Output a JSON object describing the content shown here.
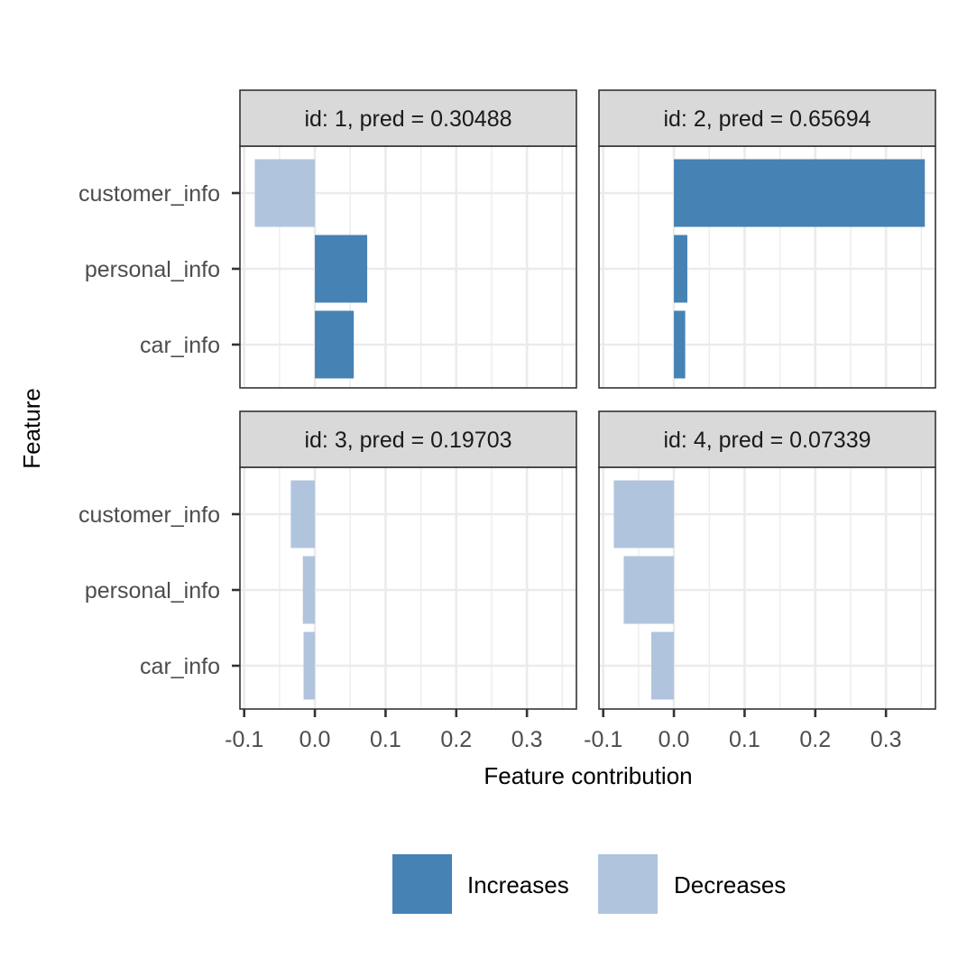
{
  "chart_data": {
    "type": "bar",
    "orientation": "horizontal",
    "facets": [
      {
        "title": "id: 1, pred = 0.30488",
        "bars": [
          {
            "feature": "customer_info",
            "value": -0.085,
            "direction": "Decreases"
          },
          {
            "feature": "personal_info",
            "value": 0.074,
            "direction": "Increases"
          },
          {
            "feature": "car_info",
            "value": 0.055,
            "direction": "Increases"
          }
        ]
      },
      {
        "title": "id: 2, pred = 0.65694",
        "bars": [
          {
            "feature": "customer_info",
            "value": 0.355,
            "direction": "Increases"
          },
          {
            "feature": "personal_info",
            "value": 0.019,
            "direction": "Increases"
          },
          {
            "feature": "car_info",
            "value": 0.016,
            "direction": "Increases"
          }
        ]
      },
      {
        "title": "id: 3, pred = 0.19703",
        "bars": [
          {
            "feature": "customer_info",
            "value": -0.034,
            "direction": "Decreases"
          },
          {
            "feature": "personal_info",
            "value": -0.017,
            "direction": "Decreases"
          },
          {
            "feature": "car_info",
            "value": -0.016,
            "direction": "Decreases"
          }
        ]
      },
      {
        "title": "id: 4, pred = 0.07339",
        "bars": [
          {
            "feature": "customer_info",
            "value": -0.085,
            "direction": "Decreases"
          },
          {
            "feature": "personal_info",
            "value": -0.071,
            "direction": "Decreases"
          },
          {
            "feature": "car_info",
            "value": -0.032,
            "direction": "Decreases"
          }
        ]
      }
    ],
    "categories": [
      "customer_info",
      "personal_info",
      "car_info"
    ],
    "x_ticks": [
      -0.1,
      0.0,
      0.1,
      0.2,
      0.3
    ],
    "x_tick_labels": [
      "-0.1",
      "0.0",
      "0.1",
      "0.2",
      "0.3"
    ],
    "xlim": [
      -0.106,
      0.37
    ],
    "xlabel": "Feature contribution",
    "ylabel": "Feature",
    "legend": {
      "placement": "bottom",
      "entries": [
        {
          "label": "Increases",
          "color": "#4682B4"
        },
        {
          "label": "Decreases",
          "color": "#B0C4DE"
        }
      ]
    },
    "grid": true,
    "colors": {
      "Increases": "#4682B4",
      "Decreases": "#B0C4DE"
    }
  }
}
